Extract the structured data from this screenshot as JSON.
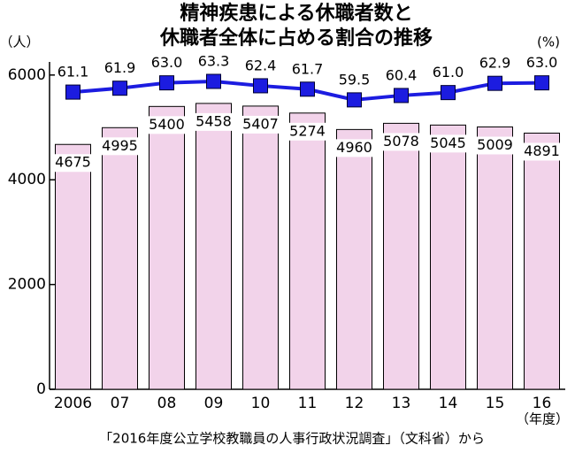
{
  "chart_data": {
    "type": "bar",
    "title": [
      "精神疾患による休職者数と",
      "休職者全体に占める割合の推移"
    ],
    "y_unit": "（人）",
    "y2_unit": "(%)",
    "x_unit": "（年度）",
    "source": "「2016年度公立学校教職員の人事行政状況調査」（文科省）から",
    "categories": [
      "2006",
      "07",
      "08",
      "09",
      "10",
      "11",
      "12",
      "13",
      "14",
      "15",
      "16"
    ],
    "series": [
      {
        "type": "bar",
        "color": "#f2d3ea",
        "values": [
          4675,
          4995,
          5400,
          5458,
          5407,
          5274,
          4960,
          5078,
          5045,
          5009,
          4891
        ]
      },
      {
        "type": "line",
        "axis": "y2",
        "color": "#1c1ce0",
        "values": [
          61.1,
          61.9,
          63,
          63.3,
          62.4,
          61.7,
          59.5,
          60.4,
          61,
          62.9,
          63
        ],
        "value_labels": [
          "61.1",
          "61.9",
          "63.0",
          "63.3",
          "62.4",
          "61.7",
          "59.5",
          "60.4",
          "61.0",
          "62.9",
          "63.0"
        ]
      }
    ],
    "ylim": [
      0,
      6250
    ],
    "yticks": [
      0,
      2000,
      4000,
      6000
    ],
    "y2lim": [
      0,
      67.3
    ]
  }
}
